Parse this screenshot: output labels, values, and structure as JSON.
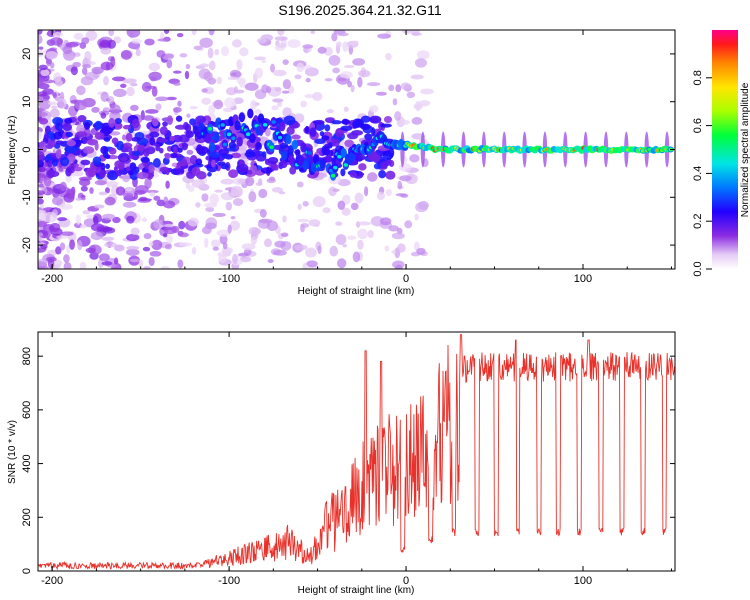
{
  "title": "S196.2025.364.21.32.G11",
  "chart_data": [
    {
      "type": "heatmap",
      "name": "spectrogram",
      "xlabel": "Height of straight line (km)",
      "ylabel": "Frequency (Hz)",
      "xlim": [
        -208,
        152
      ],
      "ylim": [
        -25,
        25
      ],
      "xticks": [
        -200,
        -100,
        0,
        100
      ],
      "xtick_labels": [
        "-200",
        "-100",
        "0",
        "100"
      ],
      "yticks": [
        -20,
        -10,
        0,
        10,
        20
      ],
      "ytick_labels": [
        "-20",
        "-10",
        "0",
        "10",
        "20"
      ],
      "colorbar": {
        "label": "Normalized spectral amplitude",
        "range": [
          0,
          1
        ],
        "ticks": [
          0.0,
          0.2,
          0.4,
          0.6,
          0.8
        ],
        "tick_labels": [
          "0.0",
          "0.2",
          "0.4",
          "0.6",
          "0.8"
        ]
      },
      "ridge": [
        {
          "x": -115,
          "f": 3
        },
        {
          "x": -100,
          "f": 3
        },
        {
          "x": -90,
          "f": 5
        },
        {
          "x": -80,
          "f": 4
        },
        {
          "x": -70,
          "f": 2
        },
        {
          "x": -60,
          "f": -2
        },
        {
          "x": -50,
          "f": -2
        },
        {
          "x": -40,
          "f": -3
        },
        {
          "x": -30,
          "f": 0
        },
        {
          "x": -20,
          "f": 0
        },
        {
          "x": -15,
          "f": 3
        },
        {
          "x": -10,
          "f": 1
        },
        {
          "x": 0,
          "f": 1
        },
        {
          "x": 10,
          "f": 0.5
        },
        {
          "x": 20,
          "f": 0
        },
        {
          "x": 150,
          "f": 0
        }
      ]
    },
    {
      "type": "line",
      "name": "snr",
      "xlabel": "Height of straight line (km)",
      "ylabel": "SNR (10 * v/v)",
      "xlim": [
        -208,
        152
      ],
      "ylim": [
        0,
        890
      ],
      "xticks": [
        -200,
        -100,
        0,
        100
      ],
      "xtick_labels": [
        "-200",
        "-100",
        "0",
        "100"
      ],
      "yticks": [
        0,
        200,
        400,
        600,
        800
      ],
      "ytick_labels": [
        "0",
        "200",
        "400",
        "600",
        "800"
      ],
      "color": "#e8312a",
      "envelope": [
        {
          "x": -208,
          "y": 20
        },
        {
          "x": -120,
          "y": 20
        },
        {
          "x": -100,
          "y": 60
        },
        {
          "x": -80,
          "y": 100
        },
        {
          "x": -65,
          "y": 140
        },
        {
          "x": -55,
          "y": 60
        },
        {
          "x": -45,
          "y": 200
        },
        {
          "x": -35,
          "y": 280
        },
        {
          "x": -25,
          "y": 380
        },
        {
          "x": -15,
          "y": 460
        },
        {
          "x": -5,
          "y": 480
        },
        {
          "x": 5,
          "y": 540
        },
        {
          "x": 15,
          "y": 620
        },
        {
          "x": 25,
          "y": 700
        },
        {
          "x": 35,
          "y": 760
        },
        {
          "x": 152,
          "y": 760
        }
      ],
      "dips": [
        {
          "x": -2,
          "y": 60
        },
        {
          "x": 14,
          "y": 100
        },
        {
          "x": 27,
          "y": 130
        },
        {
          "x": 40,
          "y": 130
        },
        {
          "x": 51,
          "y": 130
        },
        {
          "x": 63,
          "y": 130
        },
        {
          "x": 75,
          "y": 130
        },
        {
          "x": 86,
          "y": 130
        },
        {
          "x": 98,
          "y": 130
        },
        {
          "x": 110,
          "y": 130
        },
        {
          "x": 122,
          "y": 130
        },
        {
          "x": 134,
          "y": 130
        },
        {
          "x": 146,
          "y": 130
        }
      ],
      "peaks": [
        {
          "x": -23,
          "y": 820
        },
        {
          "x": -14,
          "y": 780
        },
        {
          "x": 31,
          "y": 880
        },
        {
          "x": 62,
          "y": 860
        },
        {
          "x": 103,
          "y": 860
        }
      ]
    }
  ]
}
